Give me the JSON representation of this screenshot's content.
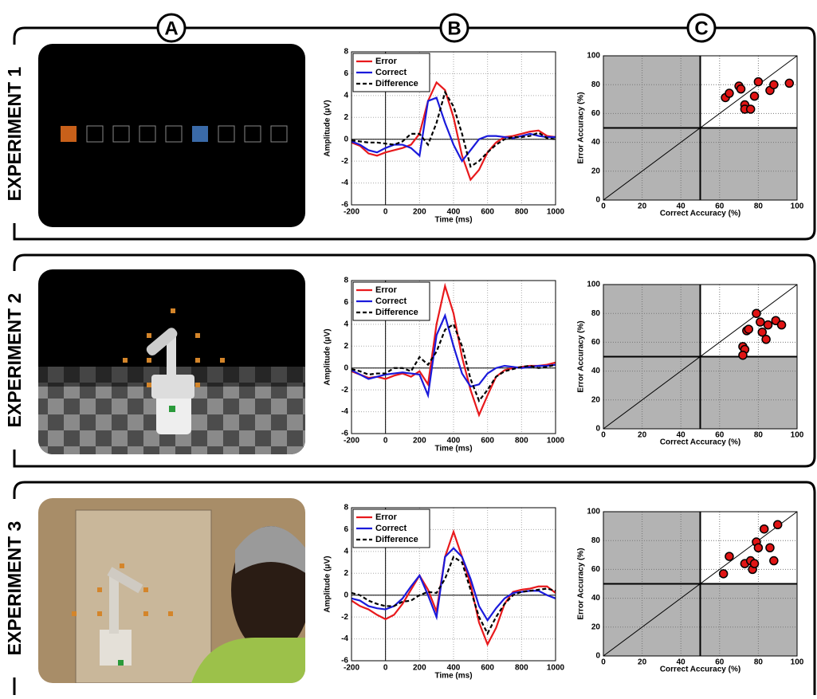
{
  "panel_labels": [
    "A",
    "B",
    "C"
  ],
  "experiments": [
    "EXPERIMENT 1",
    "EXPERIMENT 2",
    "EXPERIMENT 3"
  ],
  "chart_data": [
    {
      "type": "line",
      "xlabel": "Time (ms)",
      "ylabel": "Amplitude (μV)",
      "xlim": [
        -200,
        1000
      ],
      "ylim": [
        -6,
        8
      ],
      "xticks": [
        -200,
        0,
        200,
        400,
        600,
        800,
        1000
      ],
      "yticks": [
        -6,
        -4,
        -2,
        0,
        2,
        4,
        6,
        8
      ],
      "grid": true,
      "legend": "upper left",
      "x": [
        -200,
        -150,
        -100,
        -50,
        0,
        50,
        100,
        150,
        200,
        250,
        300,
        350,
        400,
        450,
        500,
        550,
        600,
        650,
        700,
        750,
        800,
        850,
        900,
        950,
        1000
      ],
      "series": [
        {
          "name": "Error",
          "color": "#e8191c",
          "style": "solid",
          "values": [
            -0.3,
            -0.6,
            -1.3,
            -1.5,
            -1.2,
            -1.0,
            -0.8,
            -0.5,
            0.5,
            3.5,
            5.2,
            4.5,
            2.0,
            -1.5,
            -3.7,
            -2.8,
            -1.2,
            -0.3,
            0.2,
            0.3,
            0.5,
            0.7,
            0.8,
            0.3,
            0.2
          ]
        },
        {
          "name": "Correct",
          "color": "#1a1adb",
          "style": "solid",
          "values": [
            -0.2,
            -0.5,
            -1.0,
            -1.2,
            -0.8,
            -0.5,
            -0.5,
            -0.8,
            -1.5,
            3.5,
            3.8,
            1.5,
            -0.5,
            -2.0,
            -1.0,
            0.0,
            0.3,
            0.3,
            0.2,
            0.1,
            0.3,
            0.5,
            0.3,
            0.2,
            0.2
          ]
        },
        {
          "name": "Difference",
          "color": "#000000",
          "style": "dashed",
          "values": [
            -0.1,
            -0.2,
            -0.3,
            -0.3,
            -0.4,
            -0.5,
            -0.2,
            0.5,
            0.5,
            -0.5,
            1.5,
            4.3,
            3.0,
            0.5,
            -2.5,
            -2.0,
            -1.2,
            -0.5,
            0.0,
            0.2,
            0.2,
            0.3,
            0.6,
            0.1,
            0.0
          ]
        }
      ]
    },
    {
      "type": "scatter",
      "xlabel": "Correct Accuracy (%)",
      "ylabel": "Error Accuracy (%)",
      "xlim": [
        0,
        100
      ],
      "ylim": [
        0,
        100
      ],
      "xticks": [
        0,
        20,
        40,
        60,
        80,
        100
      ],
      "yticks": [
        0,
        20,
        40,
        60,
        80,
        100
      ],
      "grid": true,
      "chance": 50,
      "color": "#e01414",
      "x": [
        63,
        65,
        70,
        71,
        73,
        73,
        76,
        78,
        80,
        86,
        88,
        96
      ],
      "values": [
        71,
        74,
        79,
        77,
        66,
        63,
        63,
        72,
        82,
        76,
        80,
        81
      ]
    },
    {
      "type": "line",
      "xlabel": "Time (ms)",
      "ylabel": "Amplitude (μV)",
      "xlim": [
        -200,
        1000
      ],
      "ylim": [
        -6,
        8
      ],
      "xticks": [
        -200,
        0,
        200,
        400,
        600,
        800,
        1000
      ],
      "yticks": [
        -6,
        -4,
        -2,
        0,
        2,
        4,
        6,
        8
      ],
      "grid": true,
      "legend": "upper left",
      "x": [
        -200,
        -150,
        -100,
        -50,
        0,
        50,
        100,
        150,
        200,
        250,
        300,
        350,
        400,
        450,
        500,
        550,
        600,
        650,
        700,
        750,
        800,
        850,
        900,
        950,
        1000
      ],
      "series": [
        {
          "name": "Error",
          "color": "#e8191c",
          "style": "solid",
          "values": [
            -0.3,
            -0.6,
            -0.9,
            -0.8,
            -1.0,
            -0.7,
            -0.5,
            -0.8,
            -0.3,
            -1.5,
            4.0,
            7.5,
            5.0,
            1.0,
            -2.0,
            -4.3,
            -2.5,
            -0.8,
            -0.2,
            0.0,
            0.1,
            0.2,
            0.2,
            0.3,
            0.5
          ]
        },
        {
          "name": "Correct",
          "color": "#1a1adb",
          "style": "solid",
          "values": [
            -0.2,
            -0.6,
            -1.0,
            -0.8,
            -0.6,
            -0.5,
            -0.4,
            -0.5,
            -0.6,
            -2.5,
            3.0,
            4.8,
            2.0,
            -0.5,
            -1.7,
            -1.5,
            -0.5,
            0.0,
            0.2,
            0.1,
            0.0,
            0.1,
            0.2,
            0.2,
            0.3
          ]
        },
        {
          "name": "Difference",
          "color": "#000000",
          "style": "dashed",
          "values": [
            -0.1,
            -0.3,
            -0.6,
            -0.5,
            -0.5,
            0.0,
            0.0,
            -0.3,
            1.0,
            0.3,
            1.5,
            3.5,
            4.0,
            2.0,
            -1.0,
            -3.0,
            -2.0,
            -0.8,
            -0.3,
            -0.1,
            0.1,
            0.2,
            0.0,
            0.1,
            0.3
          ]
        }
      ]
    },
    {
      "type": "scatter",
      "xlabel": "Correct Accuracy (%)",
      "ylabel": "Error Accuracy (%)",
      "xlim": [
        0,
        100
      ],
      "ylim": [
        0,
        100
      ],
      "xticks": [
        0,
        20,
        40,
        60,
        80,
        100
      ],
      "yticks": [
        0,
        20,
        40,
        60,
        80,
        100
      ],
      "grid": true,
      "chance": 50,
      "color": "#e01414",
      "x": [
        72,
        73,
        72,
        74,
        75,
        79,
        81,
        82,
        84,
        85,
        89,
        92
      ],
      "values": [
        57,
        55,
        51,
        68,
        69,
        80,
        74,
        67,
        62,
        72,
        75,
        72
      ]
    },
    {
      "type": "line",
      "xlabel": "Time (ms)",
      "ylabel": "Amplitude (μV)",
      "xlim": [
        -200,
        1000
      ],
      "ylim": [
        -6,
        8
      ],
      "xticks": [
        -200,
        0,
        200,
        400,
        600,
        800,
        1000
      ],
      "yticks": [
        -6,
        -4,
        -2,
        0,
        2,
        4,
        6,
        8
      ],
      "grid": true,
      "legend": "upper left",
      "x": [
        -200,
        -150,
        -100,
        -50,
        0,
        50,
        100,
        150,
        200,
        250,
        300,
        350,
        400,
        450,
        500,
        550,
        600,
        650,
        700,
        750,
        800,
        850,
        900,
        950,
        1000
      ],
      "series": [
        {
          "name": "Error",
          "color": "#e8191c",
          "style": "solid",
          "values": [
            -0.5,
            -1.0,
            -1.3,
            -1.8,
            -2.2,
            -1.8,
            -0.8,
            0.5,
            1.8,
            0.5,
            -1.5,
            3.5,
            5.8,
            3.5,
            1.0,
            -2.5,
            -4.5,
            -3.0,
            -0.8,
            0.3,
            0.5,
            0.6,
            0.8,
            0.8,
            0.2
          ]
        },
        {
          "name": "Correct",
          "color": "#1a1adb",
          "style": "solid",
          "values": [
            -0.3,
            -0.5,
            -1.0,
            -1.2,
            -1.3,
            -1.0,
            -0.3,
            0.8,
            1.8,
            0.0,
            -2.0,
            3.5,
            4.3,
            3.5,
            1.5,
            -1.0,
            -2.3,
            -1.2,
            -0.3,
            0.2,
            0.3,
            0.4,
            0.4,
            0.0,
            -0.3
          ]
        },
        {
          "name": "Difference",
          "color": "#000000",
          "style": "dashed",
          "values": [
            0.2,
            0.0,
            -0.5,
            -0.8,
            -1.0,
            -1.0,
            -0.6,
            -0.5,
            0.0,
            0.3,
            0.2,
            1.5,
            3.5,
            3.0,
            0.5,
            -2.0,
            -3.5,
            -2.0,
            -0.8,
            0.0,
            0.3,
            0.4,
            0.5,
            0.6,
            0.4
          ]
        }
      ]
    },
    {
      "type": "scatter",
      "xlabel": "Correct Accuracy (%)",
      "ylabel": "Error Accuracy (%)",
      "xlim": [
        0,
        100
      ],
      "ylim": [
        0,
        100
      ],
      "xticks": [
        0,
        20,
        40,
        60,
        80,
        100
      ],
      "yticks": [
        0,
        20,
        40,
        60,
        80,
        100
      ],
      "grid": true,
      "chance": 50,
      "color": "#e01414",
      "x": [
        62,
        65,
        73,
        76,
        77,
        78,
        79,
        80,
        83,
        86,
        88,
        90
      ],
      "values": [
        57,
        69,
        64,
        66,
        60,
        64,
        79,
        75,
        88,
        75,
        66,
        91
      ]
    }
  ]
}
